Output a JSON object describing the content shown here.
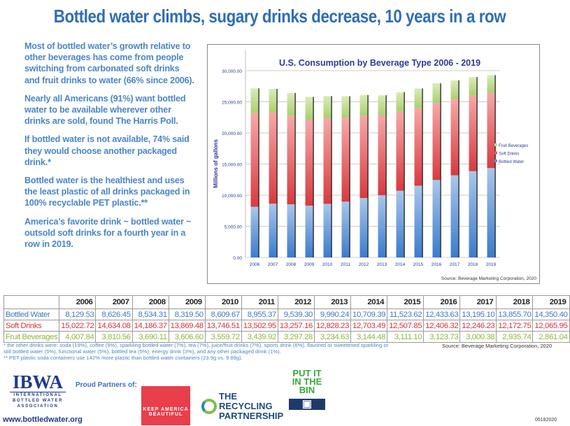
{
  "title": "Bottled water climbs, sugary drinks decrease, 10 years in a row",
  "paragraphs": [
    "Most of bottled water’s growth relative to other beverages has come from people switching from carbonated soft drinks and fruit drinks to water (66% since 2006).",
    "Nearly all Americans (91%) want bottled water to be available wherever other drinks are sold, found The Harris Poll.",
    "If bottled water is not available, 74% said they would choose another packaged drink.*",
    "Bottled water is the healthiest and uses the least plastic of all drinks packaged in 100% recyclable PET plastic.**",
    "America’s favorite drink ~ bottled water ~ outsold soft drinks for a fourth year in a row in 2019."
  ],
  "chart_data": {
    "type": "bar",
    "stacked": true,
    "title": "U.S. Consumption by Beverage Type 2006 - 2019",
    "ylabel": "Millions of gallons",
    "xlabel": "",
    "ylim": [
      0,
      30000
    ],
    "yticks": [
      "0.00",
      "5,000.00",
      "10,000.00",
      "15,000.00",
      "20,000.00",
      "25,000.00",
      "30,000.00"
    ],
    "grid": true,
    "legend": "right",
    "source": "Source: Beverage Marketing Corporation, 2020",
    "categories": [
      "2006",
      "2007",
      "2008",
      "2009",
      "2010",
      "2011",
      "2012",
      "2013",
      "2014",
      "2015",
      "2016",
      "2017",
      "2018",
      "2019"
    ],
    "series": [
      {
        "name": "Bottled Water",
        "color": "#5b92d6",
        "values": [
          8129.53,
          8626.45,
          8534.31,
          8319.5,
          8609.67,
          8955.37,
          9539.3,
          9990.24,
          10709.39,
          11523.62,
          12433.63,
          13195.1,
          13855.7,
          14350.4
        ]
      },
      {
        "name": "Soft Drinks",
        "color": "#e35a5c",
        "values": [
          15022.72,
          14634.08,
          14186.37,
          13869.48,
          13746.51,
          13502.95,
          13257.16,
          12828.23,
          12703.49,
          12507.85,
          12406.32,
          12246.23,
          12172.75,
          12065.95
        ]
      },
      {
        "name": "Fruit Beverages",
        "color": "#bcdc8c",
        "values": [
          4007.84,
          3810.56,
          3690.11,
          3606.6,
          3559.72,
          3439.92,
          3297.28,
          3234.63,
          3144.48,
          3111.1,
          3123.73,
          3000.38,
          2935.74,
          2861.04
        ]
      }
    ]
  },
  "table": {
    "years": [
      "2006",
      "2007",
      "2008",
      "2009",
      "2010",
      "2011",
      "2012",
      "2013",
      "2014",
      "2015",
      "2016",
      "2017",
      "2018",
      "2019"
    ],
    "rows": [
      {
        "label": "Bottled Water",
        "cells": [
          "8,129.53",
          "8,626.45",
          "8,534.31",
          "8,319.50",
          "8,609.67",
          "8,955.37",
          "9,539.30",
          "9,990.24",
          "10,709.39",
          "11,523.62",
          "12,433.63",
          "13,195.10",
          "13,855.70",
          "14,350.40"
        ]
      },
      {
        "label": "Soft Drinks",
        "cells": [
          "15,022.72",
          "14,634.08",
          "14,186.37",
          "13,869.48",
          "13,746.51",
          "13,502.95",
          "13,257.16",
          "12,828.23",
          "12,703.49",
          "12,507.85",
          "12,406.32",
          "12,246.23",
          "12,172.75",
          "12,065.95"
        ]
      },
      {
        "label": "Fruit Beverages",
        "cells": [
          "4,007.84",
          "3,810.56",
          "3,690.11",
          "3,606.60",
          "3,559.72",
          "3,439.92",
          "3,297.28",
          "3,234.63",
          "3,144.48",
          "3,111.10",
          "3,123.73",
          "3,000.38",
          "2,935.74",
          "2,861.04"
        ]
      }
    ]
  },
  "footnotes": [
    "* the other drinks were: soda (19%), coffee (9%), sparkling bottled water (7%), tea (7%), juice/fruit drinks (7%), sports drink (6%), flavored or sweetened sparkling or still bottled water (5%), functional water (5%), bottled tea (5%), energy drink (3%), and any other packaged drink (1%).",
    "** PET plastic soda containers use 142% more plastic than bottled water containers (23.9g vs. 9.89g)."
  ],
  "table_source": "Source: Beverage Marketing Corporation, 2020",
  "footer": {
    "ibwa": "IBWA",
    "ibwa_full": "INTERNATIONAL BOTTLED WATER ASSOCIATION",
    "url": "www.bottledwater.org",
    "partners_label": "Proud Partners of:",
    "kab": "KEEP AMERICA BEAUTIFUL",
    "trp": "THE RECYCLING PARTNERSHIP",
    "bin": "PUT IT IN THE BIN",
    "code": "05182020"
  }
}
